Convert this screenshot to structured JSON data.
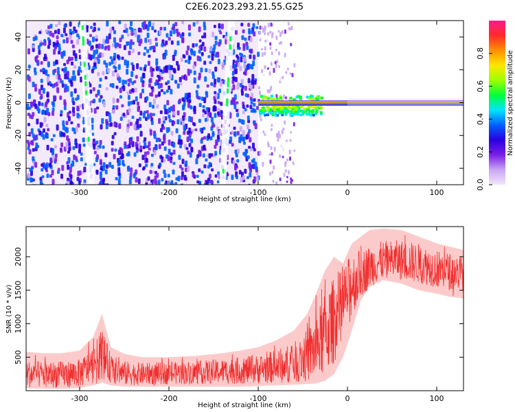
{
  "title": "C2E6.2023.293.21.55.G25",
  "chart_data": [
    {
      "type": "heatmap",
      "name": "spectrogram",
      "xlabel": "Height of straight line (km)",
      "ylabel": "Frequency (Hz)",
      "xlim": [
        -360,
        130
      ],
      "ylim": [
        -50,
        50
      ],
      "xticks": [
        -300,
        -200,
        -100,
        0,
        100
      ],
      "yticks": [
        -40,
        -20,
        0,
        20,
        40
      ],
      "colorbar": {
        "label": "Normalized spectral amplitude",
        "range": [
          0.0,
          1.0
        ],
        "ticks": [
          0.0,
          0.2,
          0.4,
          0.6,
          0.8
        ],
        "colormap": [
          "#f0e6fb",
          "#c9a6f3",
          "#7a1ee6",
          "#2a00e0",
          "#0060ff",
          "#00e5ff",
          "#00ff3a",
          "#9cff00",
          "#ffe600",
          "#ff9000",
          "#ff2a2a",
          "#ff1a8c"
        ]
      },
      "regions": [
        {
          "label": "noise",
          "x_from": -360,
          "x_to": -100,
          "y_from": -50,
          "y_to": 50,
          "level": 0.35
        },
        {
          "label": "sparse noise",
          "x_from": -100,
          "x_to": -60,
          "y_from": -50,
          "y_to": 50,
          "level": 0.12
        },
        {
          "label": "signal spread",
          "x_from": -100,
          "x_to": -30,
          "y_from": -7,
          "y_to": 5,
          "level": 0.45
        },
        {
          "label": "carrier line",
          "x_from": -100,
          "x_to": 130,
          "y_from": -1,
          "y_to": 1,
          "level": 0.95
        }
      ],
      "streaks": [
        {
          "x_top": -297,
          "x_bottom": -287,
          "level": 0.55
        },
        {
          "x_top": -130,
          "x_bottom": -140,
          "level": 0.55
        }
      ]
    },
    {
      "type": "line",
      "name": "snr",
      "xlabel": "Height of straight line (km)",
      "ylabel": "SNR (10 * v/v)",
      "xlim": [
        -360,
        130
      ],
      "ylim": [
        0,
        2450
      ],
      "xticks": [
        -300,
        -200,
        -100,
        0,
        100
      ],
      "yticks": [
        500,
        1000,
        1500,
        2000
      ],
      "color": "#f03030",
      "envelope": {
        "x": [
          -360,
          -340,
          -320,
          -300,
          -285,
          -275,
          -265,
          -250,
          -230,
          -200,
          -170,
          -140,
          -120,
          -100,
          -80,
          -60,
          -45,
          -35,
          -25,
          -15,
          -5,
          5,
          15,
          25,
          40,
          60,
          80,
          100,
          115,
          130
        ],
        "low": [
          40,
          30,
          30,
          40,
          80,
          120,
          80,
          60,
          60,
          60,
          60,
          60,
          60,
          70,
          80,
          90,
          100,
          110,
          150,
          250,
          500,
          900,
          1350,
          1550,
          1650,
          1600,
          1500,
          1450,
          1400,
          1380
        ],
        "high": [
          580,
          560,
          560,
          600,
          800,
          1150,
          650,
          550,
          500,
          500,
          520,
          560,
          600,
          650,
          750,
          900,
          1150,
          1450,
          1800,
          2000,
          1900,
          2200,
          2300,
          2400,
          2420,
          2400,
          2300,
          2200,
          2150,
          2100
        ],
        "mean": [
          250,
          240,
          240,
          260,
          380,
          560,
          330,
          260,
          250,
          260,
          270,
          290,
          300,
          320,
          360,
          420,
          520,
          650,
          850,
          1050,
          1300,
          1600,
          1750,
          1850,
          1950,
          1950,
          1900,
          1820,
          1780,
          1760
        ]
      }
    }
  ]
}
